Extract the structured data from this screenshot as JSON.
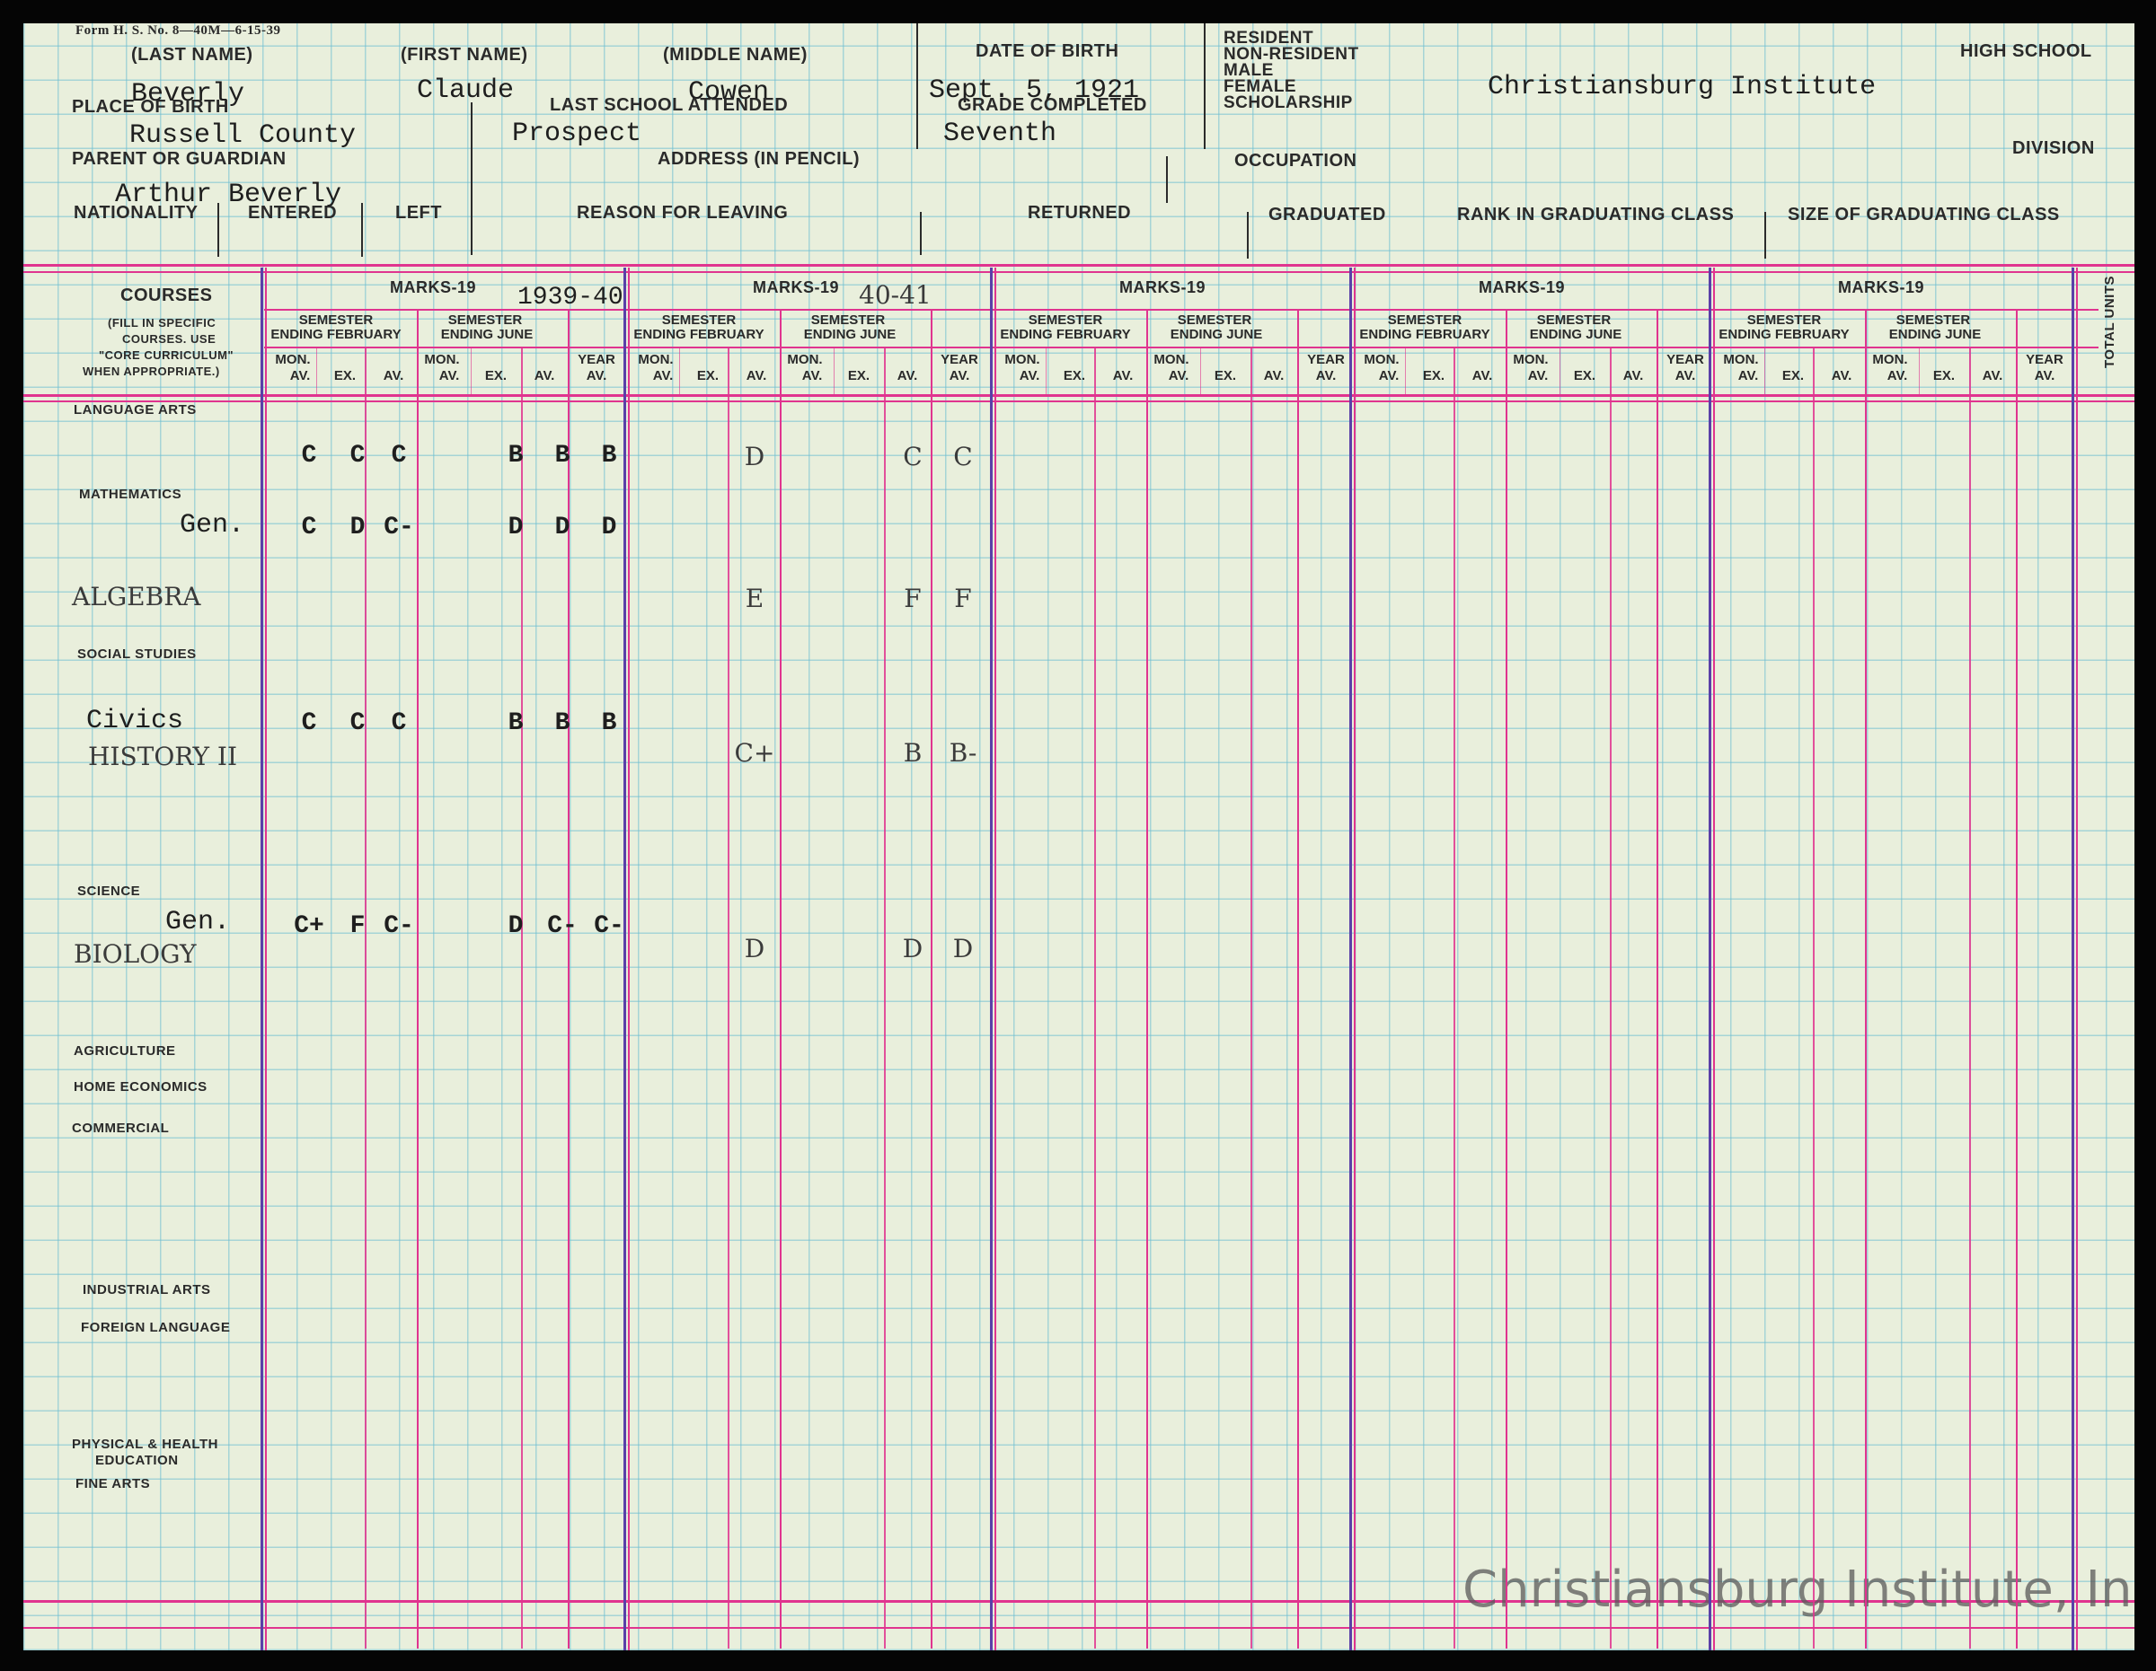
{
  "form_id": "Form H. S. No. 8—40M—6-15-39",
  "labels": {
    "last_name": "(LAST NAME)",
    "first_name": "(FIRST NAME)",
    "middle_name": "(MIDDLE NAME)",
    "date_of_birth": "DATE OF BIRTH",
    "resident": "RESIDENT",
    "non_resident": "NON-RESIDENT",
    "male": "MALE",
    "female": "FEMALE",
    "scholarship": "SCHOLARSHIP",
    "high_school": "HIGH SCHOOL",
    "place_of_birth": "PLACE OF BIRTH",
    "last_school": "LAST SCHOOL ATTENDED",
    "grade_completed": "GRADE COMPLETED",
    "parent": "PARENT OR GUARDIAN",
    "address": "ADDRESS (IN PENCIL)",
    "occupation": "OCCUPATION",
    "division": "DIVISION",
    "nationality": "NATIONALITY",
    "entered": "ENTERED",
    "left": "LEFT",
    "reason": "REASON FOR LEAVING",
    "returned": "RETURNED",
    "graduated": "GRADUATED",
    "rank": "RANK IN GRADUATING CLASS",
    "size": "SIZE OF GRADUATING CLASS"
  },
  "student": {
    "last_name": "Beverly",
    "first_name": "Claude",
    "middle_name": "Cowen",
    "date_of_birth": "Sept. 5, 1921",
    "high_school": "Christiansburg Institute",
    "place_of_birth": "Russell County",
    "last_school": "Prospect",
    "grade_completed": "Seventh",
    "parent": "Arthur Beverly"
  },
  "grid_labels": {
    "courses": "COURSES",
    "courses_note": [
      "(FILL IN SPECIFIC",
      "COURSES.  USE",
      "\"CORE CURRICULUM\"",
      "WHEN APPROPRIATE.)"
    ],
    "marks": "MARKS-19",
    "sem_feb": [
      "SEMESTER",
      "ENDING FEBRUARY"
    ],
    "sem_june": [
      "SEMESTER",
      "ENDING JUNE"
    ],
    "mon": "MON.",
    "av": "AV.",
    "ex": "EX.",
    "year": "YEAR",
    "total_units": "TOTAL UNITS"
  },
  "years": [
    "1939-40",
    "40-41",
    "",
    "",
    ""
  ],
  "course_labels": [
    "LANGUAGE ARTS",
    "MATHEMATICS",
    "SOCIAL STUDIES",
    "SCIENCE",
    "AGRICULTURE",
    "HOME ECONOMICS",
    "COMMERCIAL",
    "INDUSTRIAL ARTS",
    "FOREIGN LANGUAGE",
    "PHYSICAL & HEALTH",
    "EDUCATION",
    "FINE ARTS"
  ],
  "course_entries": {
    "math_gen": "Gen.",
    "algebra": "ALGEBRA",
    "civics": "Civics",
    "history": "HISTORY II",
    "sci_gen": "Gen.",
    "biology": "BIOLOGY"
  },
  "marks": [
    {
      "row": "language",
      "y1": [
        "C",
        "C",
        "C",
        "B",
        "B",
        "B"
      ],
      "y2": [
        "D",
        "C",
        "C"
      ]
    },
    {
      "row": "math_gen",
      "y1": [
        "C",
        "D",
        "C-",
        "D",
        "D",
        "D"
      ]
    },
    {
      "row": "algebra",
      "y2": [
        "E",
        "F",
        "F"
      ]
    },
    {
      "row": "civics",
      "y1": [
        "C",
        "C",
        "C",
        "B",
        "B",
        "B"
      ]
    },
    {
      "row": "history",
      "y2": [
        "C+",
        "B",
        "B-"
      ]
    },
    {
      "row": "sci_gen",
      "y1": [
        "C+",
        "F",
        "C-",
        "D",
        "C-",
        "C-"
      ]
    },
    {
      "row": "biology",
      "y2": [
        "D",
        "D",
        "D"
      ]
    }
  ],
  "watermark": "Christiansburg Institute, Inc"
}
